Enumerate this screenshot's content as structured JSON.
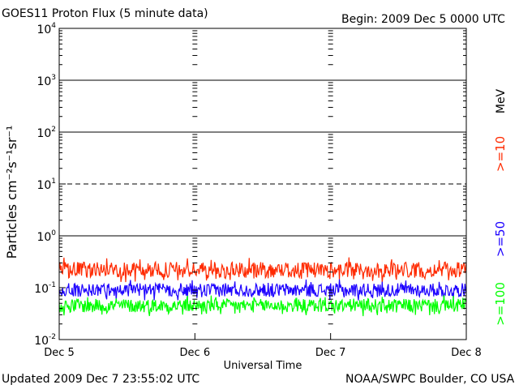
{
  "header": {
    "title": "GOES11 Proton Flux (5 minute data)",
    "begin": "Begin: 2009 Dec 5 0000 UTC"
  },
  "footer": {
    "updated": "Updated 2009 Dec  7 23:55:02 UTC",
    "credit": "NOAA/SWPC Boulder, CO USA"
  },
  "colors": {
    "ge10": "#ff2a00",
    "ge50": "#1c00ff",
    "ge100": "#00ff00",
    "axis": "#000000"
  },
  "chart_data": {
    "type": "line",
    "xlabel": "Universal Time",
    "ylabel": "Particles cm⁻²s⁻¹sr⁻¹",
    "yscale": "log",
    "ylim": [
      0.01,
      10000
    ],
    "xlim": [
      0,
      3
    ],
    "x_ticks": [
      {
        "value": 0,
        "label": "Dec 5"
      },
      {
        "value": 1,
        "label": "Dec 6"
      },
      {
        "value": 2,
        "label": "Dec 7"
      },
      {
        "value": 3,
        "label": "Dec 8"
      }
    ],
    "y_ticks": [
      {
        "value": 0.01,
        "base": "10",
        "exp": "-2"
      },
      {
        "value": 0.1,
        "base": "10",
        "exp": "-1"
      },
      {
        "value": 1,
        "base": "10",
        "exp": "0"
      },
      {
        "value": 10,
        "base": "10",
        "exp": "1"
      },
      {
        "value": 100,
        "base": "10",
        "exp": "2"
      },
      {
        "value": 1000,
        "base": "10",
        "exp": "3"
      },
      {
        "value": 10000,
        "base": "10",
        "exp": "4"
      }
    ],
    "threshold_lines": [
      {
        "value": 1,
        "style": "solid"
      },
      {
        "value": 10,
        "style": "dashed"
      },
      {
        "value": 100,
        "style": "solid"
      },
      {
        "value": 1000,
        "style": "solid"
      }
    ],
    "legend": {
      "unit": "MeV",
      "placement": "right",
      "entries": [
        ">=10",
        ">=50",
        ">=100"
      ]
    },
    "series": [
      {
        "name": ">=10",
        "color": "#ff2a00",
        "baseline": 0.22,
        "spread": 0.35,
        "min": 0.12,
        "max": 0.7
      },
      {
        "name": ">=50",
        "color": "#1c00ff",
        "baseline": 0.09,
        "spread": 0.3,
        "min": 0.055,
        "max": 0.25
      },
      {
        "name": ">=100",
        "color": "#00ff00",
        "baseline": 0.045,
        "spread": 0.3,
        "min": 0.025,
        "max": 0.1
      }
    ]
  }
}
